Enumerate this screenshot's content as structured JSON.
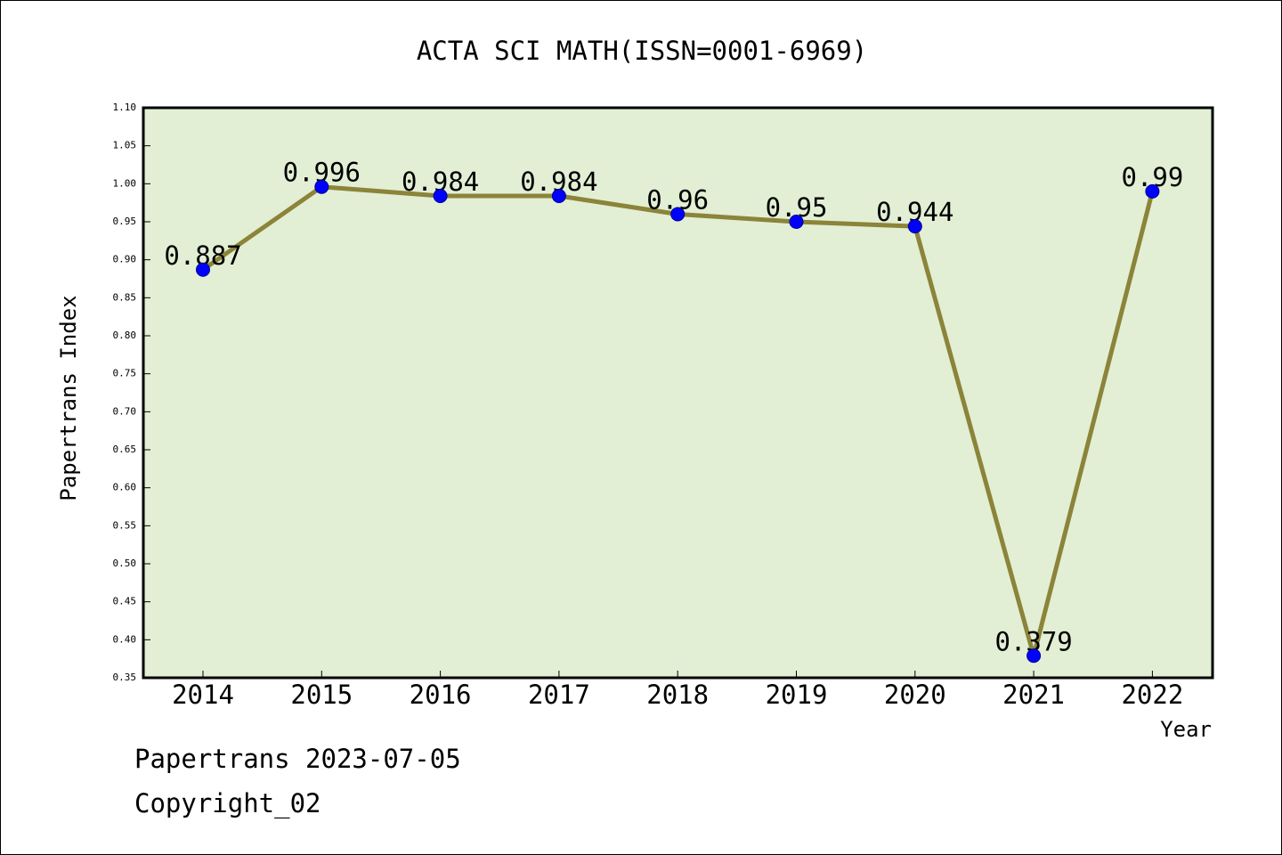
{
  "chart_data": {
    "type": "line",
    "title": "ACTA SCI MATH(ISSN=0001-6969)",
    "xlabel": "Year",
    "ylabel": "Papertrans Index",
    "categories": [
      "2014",
      "2015",
      "2016",
      "2017",
      "2018",
      "2019",
      "2020",
      "2021",
      "2022"
    ],
    "values": [
      0.887,
      0.996,
      0.984,
      0.984,
      0.96,
      0.95,
      0.944,
      0.379,
      0.99
    ],
    "value_labels": [
      "0.887",
      "0.996",
      "0.984",
      "0.984",
      "0.96",
      "0.95",
      "0.944",
      "0.379",
      "0.99"
    ],
    "ylim": [
      0.35,
      1.1
    ],
    "yticks": [
      "0.35",
      "0.40",
      "0.45",
      "0.50",
      "0.55",
      "0.60",
      "0.65",
      "0.70",
      "0.75",
      "0.80",
      "0.85",
      "0.90",
      "0.95",
      "1.00",
      "1.05",
      "1.10"
    ],
    "grid": false,
    "colors": {
      "plot_background": "#e2efd5",
      "line": "#8b8439",
      "marker": "#0000ff"
    }
  },
  "footer": {
    "date_line": "Papertrans 2023-07-05",
    "copyright_line": "Copyright_02"
  }
}
